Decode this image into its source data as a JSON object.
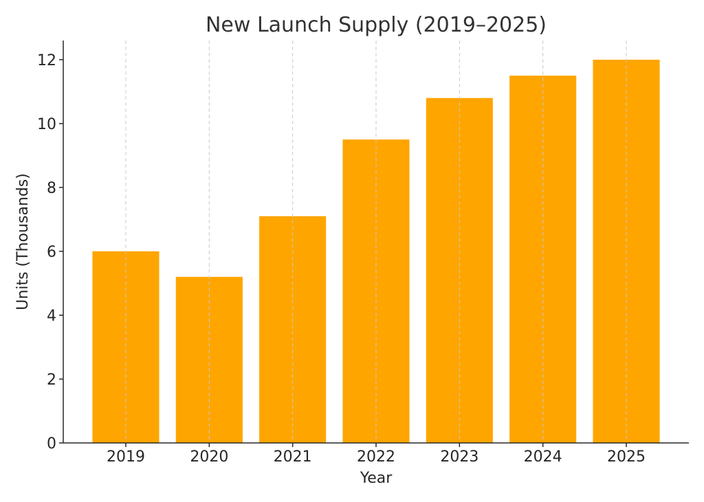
{
  "chart_data": {
    "type": "bar",
    "title": "New Launch Supply (2019–2025)",
    "xlabel": "Year",
    "ylabel": "Units (Thousands)",
    "categories": [
      "2019",
      "2020",
      "2021",
      "2022",
      "2023",
      "2024",
      "2025"
    ],
    "values": [
      6.0,
      5.2,
      7.1,
      9.5,
      10.8,
      11.5,
      12.0
    ],
    "ylim": [
      0,
      12.6
    ],
    "yticks": [
      0,
      2,
      4,
      6,
      8,
      10,
      12
    ],
    "grid": "vertical dashed",
    "bar_color": "#FFA500"
  }
}
